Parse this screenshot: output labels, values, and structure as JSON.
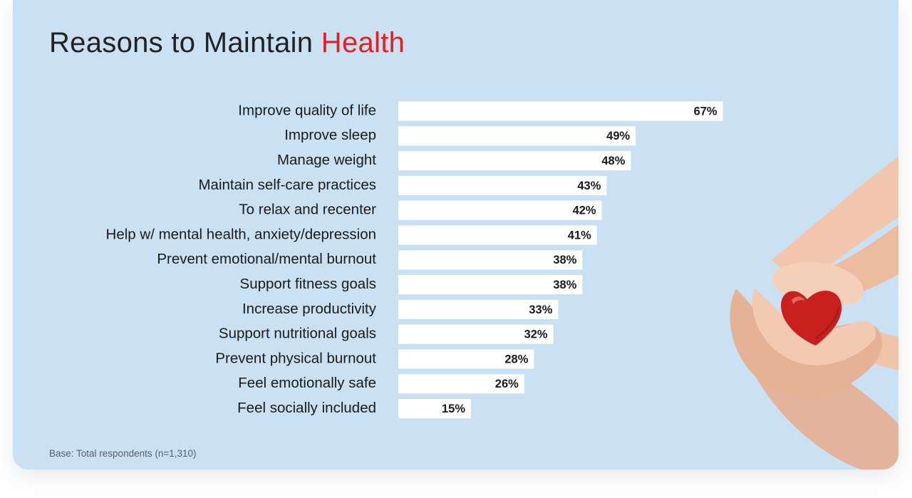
{
  "header": {
    "title_main": "Reasons to Maintain ",
    "title_accent": "Health"
  },
  "footnote": "Base: Total respondents (n=1,310)",
  "colors": {
    "background": "#c9e1f2",
    "bar": "#ffffff",
    "accent": "#e31e24",
    "text": "#1a1a1a"
  },
  "chart_data": {
    "type": "bar",
    "orientation": "horizontal",
    "categories": [
      "Improve quality of life",
      "Improve sleep",
      "Manage weight",
      "Maintain self-care practices",
      "To relax and recenter",
      "Help w/ mental health, anxiety/depression",
      "Prevent emotional/mental burnout",
      "Support fitness goals",
      "Increase productivity",
      "Support nutritional goals",
      "Prevent physical burnout",
      "Feel emotionally safe",
      "Feel socially included"
    ],
    "values": [
      67,
      49,
      48,
      43,
      42,
      41,
      38,
      38,
      33,
      32,
      28,
      26,
      15
    ],
    "value_labels": [
      "67%",
      "49%",
      "48%",
      "43%",
      "42%",
      "41%",
      "38%",
      "38%",
      "33%",
      "32%",
      "28%",
      "26%",
      "15%"
    ],
    "unit": "%",
    "xlim": [
      0,
      100
    ],
    "grid": false,
    "legend": "none"
  },
  "decoration": {
    "image_icon": "hands-holding-heart-icon"
  }
}
